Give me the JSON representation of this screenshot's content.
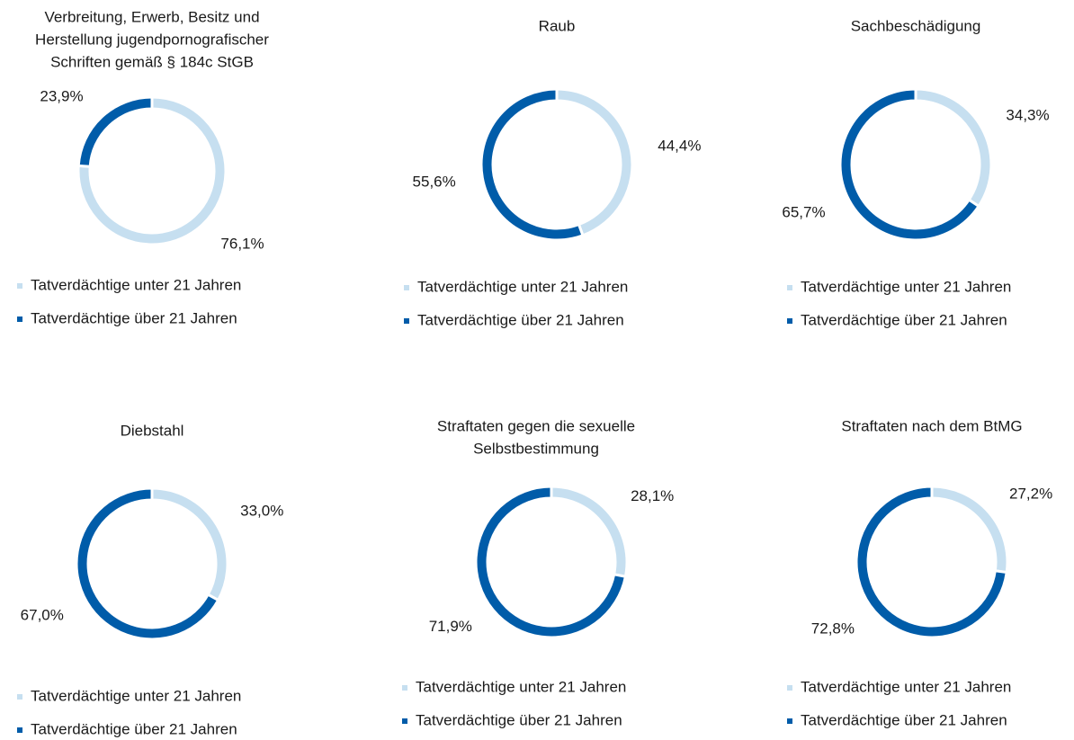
{
  "chart_data": [
    {
      "type": "donut",
      "title": [
        "Verbreitung, Erwerb, Besitz und",
        "Herstellung jugendpornografischer",
        "Schriften gemäß § 184c StGB"
      ],
      "categories": [
        "Tatverdächtige unter 21 Jahren",
        "Tatverdächtige über 21 Jahren"
      ],
      "values": [
        76.1,
        23.9
      ],
      "value_labels": [
        "76,1%",
        "23,9%"
      ],
      "colors": [
        "#c6dff0",
        "#005ca9"
      ]
    },
    {
      "type": "donut",
      "title": [
        "Raub"
      ],
      "categories": [
        "Tatverdächtige unter 21 Jahren",
        "Tatverdächtige über 21 Jahren"
      ],
      "values": [
        44.4,
        55.6
      ],
      "value_labels": [
        "44,4%",
        "55,6%"
      ],
      "colors": [
        "#c6dff0",
        "#005ca9"
      ]
    },
    {
      "type": "donut",
      "title": [
        "Sachbeschädigung"
      ],
      "categories": [
        "Tatverdächtige unter 21 Jahren",
        "Tatverdächtige über 21 Jahren"
      ],
      "values": [
        34.3,
        65.7
      ],
      "value_labels": [
        "34,3%",
        "65,7%"
      ],
      "colors": [
        "#c6dff0",
        "#005ca9"
      ]
    },
    {
      "type": "donut",
      "title": [
        "Diebstahl"
      ],
      "categories": [
        "Tatverdächtige unter 21 Jahren",
        "Tatverdächtige über 21 Jahren"
      ],
      "values": [
        33.0,
        67.0
      ],
      "value_labels": [
        "33,0%",
        "67,0%"
      ],
      "colors": [
        "#c6dff0",
        "#005ca9"
      ]
    },
    {
      "type": "donut",
      "title": [
        "Straftaten gegen die sexuelle",
        "Selbstbestimmung"
      ],
      "categories": [
        "Tatverdächtige unter 21 Jahren",
        "Tatverdächtige über 21 Jahren"
      ],
      "values": [
        28.1,
        71.9
      ],
      "value_labels": [
        "28,1%",
        "71,9%"
      ],
      "colors": [
        "#c6dff0",
        "#005ca9"
      ]
    },
    {
      "type": "donut",
      "title": [
        "Straftaten nach dem BtMG"
      ],
      "categories": [
        "Tatverdächtige unter 21 Jahren",
        "Tatverdächtige über 21 Jahren"
      ],
      "values": [
        27.2,
        72.8
      ],
      "value_labels": [
        "27,2%",
        "72,8%"
      ],
      "colors": [
        "#c6dff0",
        "#005ca9"
      ]
    }
  ]
}
